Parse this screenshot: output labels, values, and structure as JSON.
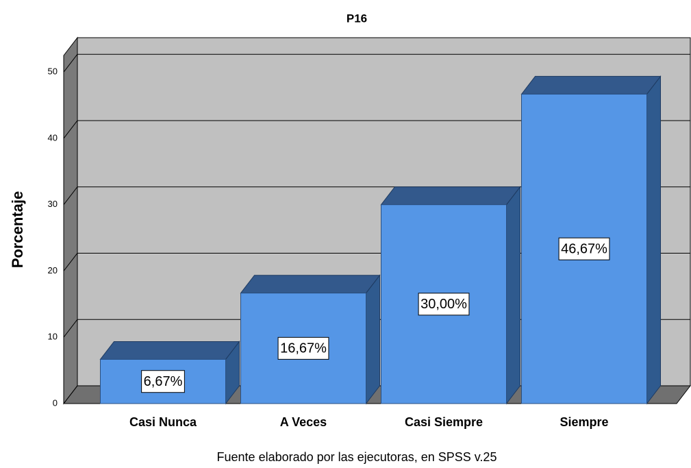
{
  "chart_data": {
    "type": "bar",
    "title": "P16",
    "y_label": "Porcentaje",
    "footnote": "Fuente elaborado por las ejecutoras, en SPSS v.25",
    "categories": [
      "Casi Nunca",
      "A Veces",
      "Casi Siempre",
      "Siempre"
    ],
    "values": [
      6.67,
      16.67,
      30.0,
      46.67
    ],
    "value_labels": [
      "6,67%",
      "16,67%",
      "30,00%",
      "46,67%"
    ],
    "color": "#5596e6",
    "ylim": [
      0,
      52.5
    ],
    "yticks": [
      0,
      10,
      20,
      30,
      40,
      50
    ],
    "grid": true
  }
}
